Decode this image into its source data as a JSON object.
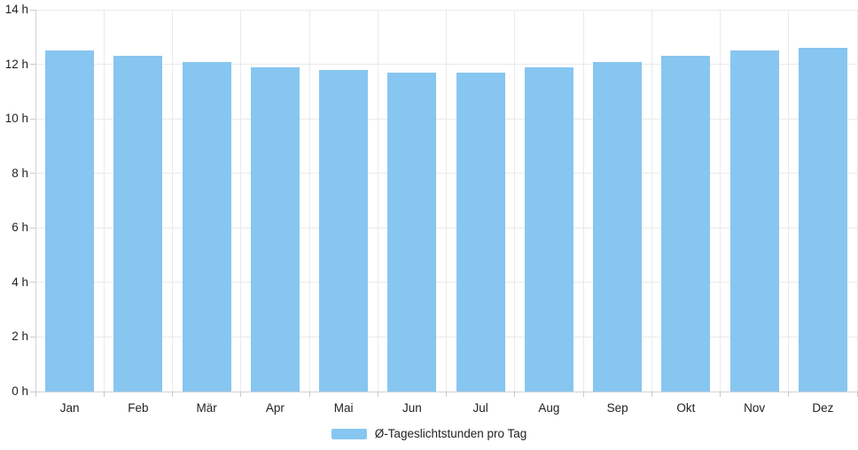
{
  "chart_data": {
    "type": "bar",
    "categories": [
      "Jan",
      "Feb",
      "Mär",
      "Apr",
      "Mai",
      "Jun",
      "Jul",
      "Aug",
      "Sep",
      "Okt",
      "Nov",
      "Dez"
    ],
    "values": [
      12.5,
      12.3,
      12.1,
      11.9,
      11.8,
      11.7,
      11.7,
      11.9,
      12.1,
      12.3,
      12.5,
      12.6
    ],
    "unit": "h",
    "ylim": [
      0,
      14
    ],
    "y_ticks": [
      0,
      2,
      4,
      6,
      8,
      10,
      12,
      14
    ],
    "y_tick_labels": [
      "0 h",
      "2 h",
      "4 h",
      "6 h",
      "8 h",
      "10 h",
      "12 h",
      "14 h"
    ],
    "grid": true,
    "legend_position": "bottom",
    "legend": [
      {
        "label": "Ø-Tageslichtstunden pro Tag",
        "color": "#87c6f0"
      }
    ],
    "colors": {
      "bar": "#87c6f0",
      "grid": "#eaeaea",
      "axis": "#d2d2d2",
      "tick": "#c9c9c9",
      "text": "#222222"
    }
  }
}
